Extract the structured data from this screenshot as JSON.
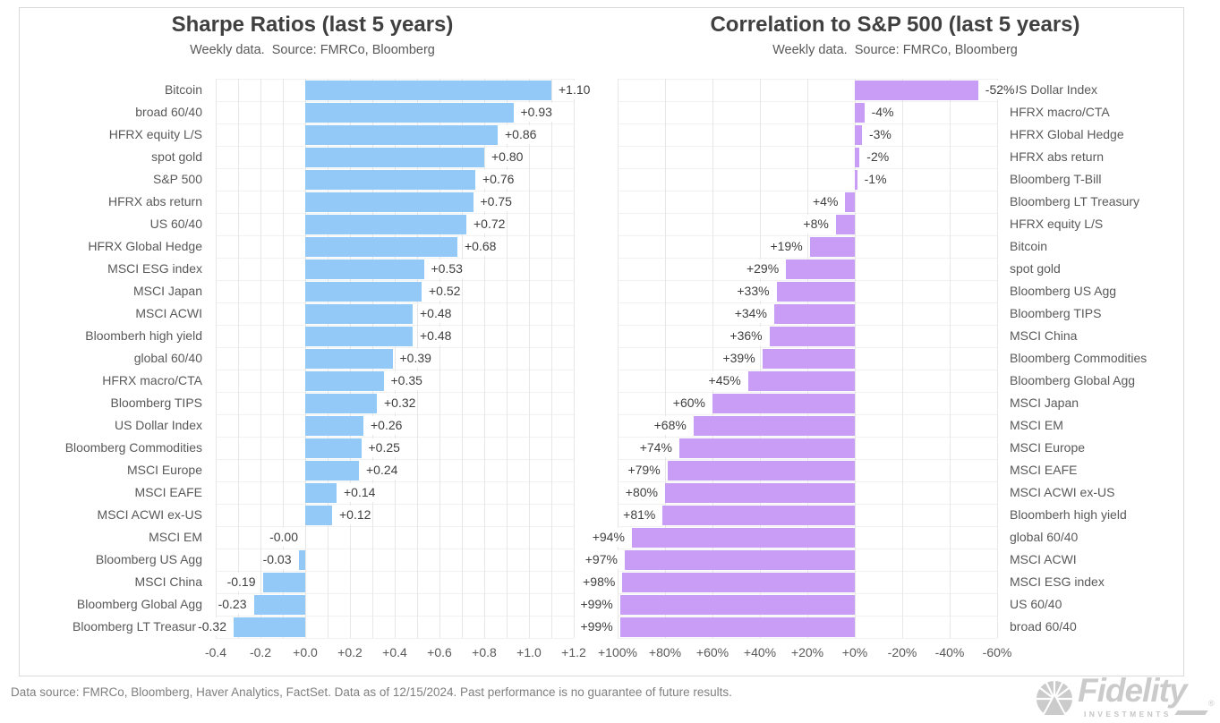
{
  "chart_data": [
    {
      "type": "bar",
      "orientation": "horizontal",
      "title": "Sharpe Ratios (last 5 years)",
      "subtitle": "Weekly data.  Source: FMRCo, Bloomberg",
      "bar_color": "#92C9F7",
      "grid": true,
      "legend": "none",
      "axis": {
        "min": -0.4,
        "max": 1.2,
        "tick_step": 0.2,
        "reversed": false,
        "tick_labels": [
          "-0.4",
          "-0.2",
          "+0.0",
          "+0.2",
          "+0.4",
          "+0.6",
          "+0.8",
          "+1.0",
          "+1.2"
        ],
        "tick_values": [
          -0.4,
          -0.2,
          0,
          0.2,
          0.4,
          0.6,
          0.8,
          1.0,
          1.2
        ]
      },
      "categories": [
        "Bitcoin",
        "broad 60/40",
        "HFRX equity L/S",
        "spot gold",
        "S&P 500",
        "HFRX abs return",
        "US 60/40",
        "HFRX Global Hedge",
        "MSCI ESG index",
        "MSCI Japan",
        "MSCI ACWI",
        "Bloomberh high yield",
        "global 60/40",
        "HFRX macro/CTA",
        "Bloomberg TIPS",
        "US Dollar Index",
        "Bloomberg Commodities",
        "MSCI Europe",
        "MSCI EAFE",
        "MSCI ACWI ex-US",
        "MSCI EM",
        "Bloomberg US Agg",
        "MSCI China",
        "Bloomberg Global Agg",
        "Bloomberg LT Treasury"
      ],
      "values": [
        1.1,
        0.93,
        0.86,
        0.8,
        0.76,
        0.75,
        0.72,
        0.68,
        0.53,
        0.52,
        0.48,
        0.48,
        0.39,
        0.35,
        0.32,
        0.26,
        0.25,
        0.24,
        0.14,
        0.12,
        0,
        -0.03,
        -0.19,
        -0.23,
        -0.32
      ],
      "value_labels": [
        "+1.10",
        "+0.93",
        "+0.86",
        "+0.80",
        "+0.76",
        "+0.75",
        "+0.72",
        "+0.68",
        "+0.53",
        "+0.52",
        "+0.48",
        "+0.48",
        "+0.39",
        "+0.35",
        "+0.32",
        "+0.26",
        "+0.25",
        "+0.24",
        "+0.14",
        "+0.12",
        "-0.00",
        "-0.03",
        "-0.19",
        "-0.23",
        "-0.32"
      ],
      "category_side": "left"
    },
    {
      "type": "bar",
      "orientation": "horizontal",
      "title": "Correlation to S&P 500 (last 5 years)",
      "subtitle": "Weekly data.  Source: FMRCo, Bloomberg",
      "bar_color": "#C99CF6",
      "grid": true,
      "legend": "none",
      "axis": {
        "min": -60,
        "max": 100,
        "tick_step": 20,
        "reversed": true,
        "tick_labels": [
          "+100%",
          "+80%",
          "+60%",
          "+40%",
          "+20%",
          "+0%",
          "-20%",
          "-40%",
          "-60%"
        ],
        "tick_values": [
          100,
          80,
          60,
          40,
          20,
          0,
          -20,
          -40,
          -60
        ]
      },
      "categories": [
        "US Dollar Index",
        "HFRX macro/CTA",
        "HFRX Global Hedge",
        "HFRX abs return",
        "Bloomberg T-Bill",
        "Bloomberg LT Treasury",
        "HFRX equity L/S",
        "Bitcoin",
        "spot gold",
        "Bloomberg US Agg",
        "Bloomberg TIPS",
        "MSCI China",
        "Bloomberg Commodities",
        "Bloomberg Global Agg",
        "MSCI Japan",
        "MSCI EM",
        "MSCI Europe",
        "MSCI EAFE",
        "MSCI ACWI ex-US",
        "Bloomberh high yield",
        "global 60/40",
        "MSCI ACWI",
        "MSCI ESG index",
        "US 60/40",
        "broad 60/40"
      ],
      "values": [
        -52,
        -4,
        -3,
        -2,
        -1,
        4,
        8,
        19,
        29,
        33,
        34,
        36,
        39,
        45,
        60,
        68,
        74,
        79,
        80,
        81,
        94,
        97,
        98,
        99,
        99
      ],
      "value_labels": [
        "-52%",
        "-4%",
        "-3%",
        "-2%",
        "-1%",
        "+4%",
        "+8%",
        "+19%",
        "+29%",
        "+33%",
        "+34%",
        "+36%",
        "+39%",
        "+45%",
        "+60%",
        "+68%",
        "+74%",
        "+79%",
        "+80%",
        "+81%",
        "+94%",
        "+97%",
        "+98%",
        "+99%",
        "+99%"
      ],
      "category_side": "right"
    }
  ],
  "footer": {
    "text": "Data source: FMRCo, Bloomberg, Haver Analytics, FactSet. Data as of 12/15/2024. Past performance is no guarantee of future results."
  },
  "logo": {
    "brand": "Fidelity",
    "registered": "®",
    "subtext": "INVESTMENTS"
  },
  "colors": {
    "sharpe_bar": "#92C9F7",
    "correlation_bar": "#C99CF6",
    "title_text": "#404040",
    "category_text": "#595959",
    "value_text": "#3F3F3F",
    "gridline": "#E7E7E7",
    "row_line": "#F1F1F1",
    "frame_border": "#D9D9D9",
    "footer_text": "#7F7F7F",
    "logo_gray": "#CBCBCB"
  }
}
